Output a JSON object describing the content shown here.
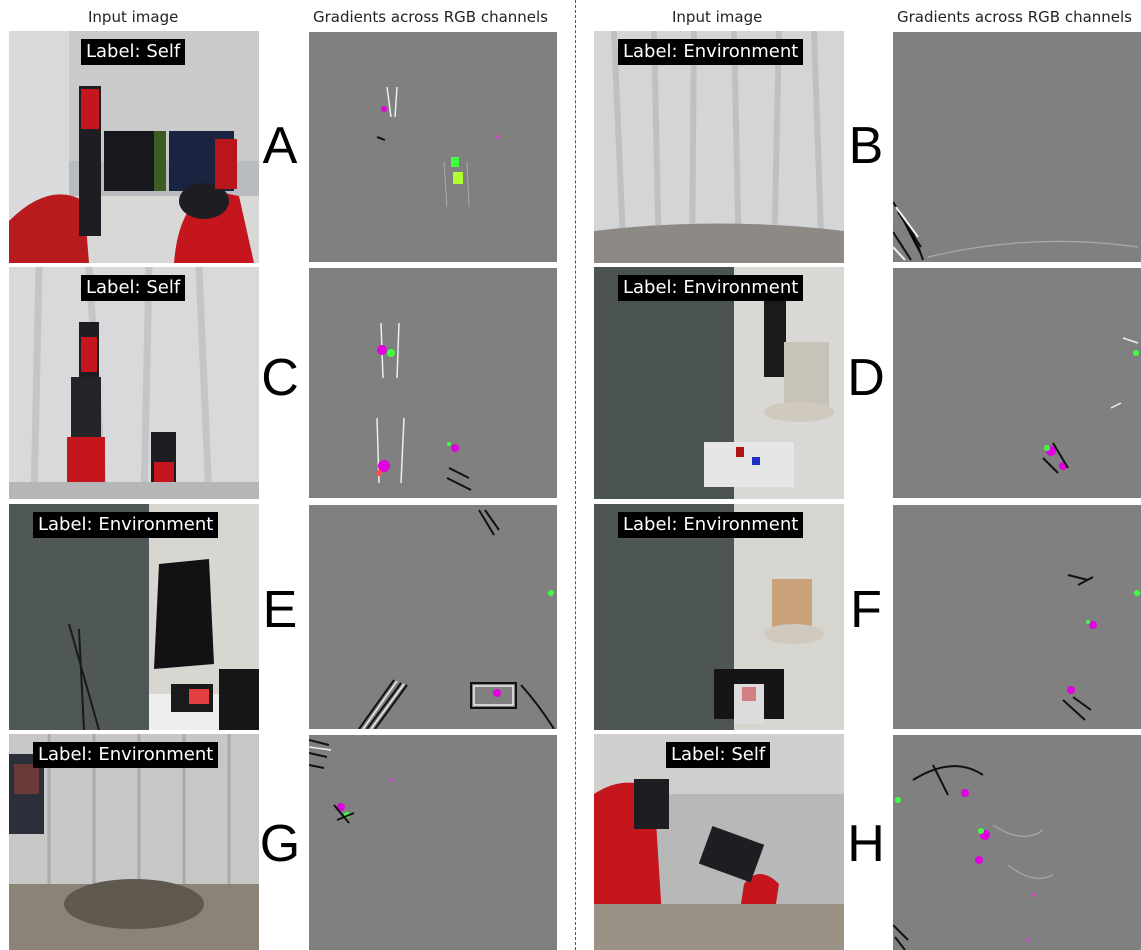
{
  "figure": {
    "left_headers": {
      "input": "Input image",
      "gradients": "Gradients across RGB channels"
    },
    "right_headers": {
      "input": "Input image",
      "gradients": "Gradients across RGB channels"
    },
    "panels": [
      {
        "letter": "A",
        "label": "Label: Self"
      },
      {
        "letter": "B",
        "label": "Label: Environment"
      },
      {
        "letter": "C",
        "label": "Label: Self"
      },
      {
        "letter": "D",
        "label": "Label: Environment"
      },
      {
        "letter": "E",
        "label": "Label: Environment"
      },
      {
        "letter": "F",
        "label": "Label: Environment"
      },
      {
        "letter": "G",
        "label": "Label: Environment"
      },
      {
        "letter": "H",
        "label": "Label: Self"
      }
    ],
    "colors": {
      "gradient_background": "#808080",
      "robot_red": "#c4161c",
      "highlight_magenta": "#e000e0",
      "highlight_green": "#40ff40"
    }
  }
}
